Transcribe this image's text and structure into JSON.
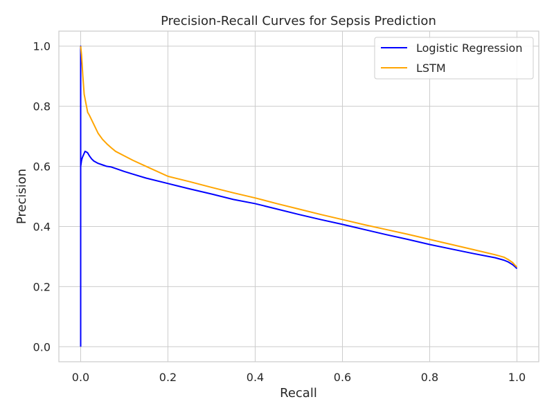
{
  "chart_data": {
    "type": "line",
    "title": "Precision-Recall Curves for Sepsis Prediction",
    "xlabel": "Recall",
    "ylabel": "Precision",
    "xlim": [
      -0.05,
      1.05
    ],
    "ylim": [
      -0.05,
      1.05
    ],
    "xticks": [
      0.0,
      0.2,
      0.4,
      0.6,
      0.8,
      1.0
    ],
    "xtick_labels": [
      "0.0",
      "0.2",
      "0.4",
      "0.6",
      "0.8",
      "1.0"
    ],
    "yticks": [
      0.0,
      0.2,
      0.4,
      0.6,
      0.8,
      1.0
    ],
    "ytick_labels": [
      "0.0",
      "0.2",
      "0.4",
      "0.6",
      "0.8",
      "1.0"
    ],
    "grid": true,
    "legend_position": "top-right",
    "series": [
      {
        "name": "Logistic Regression",
        "color": "#0000ff",
        "x": [
          0.0,
          0.0,
          0.0,
          0.0,
          0.0,
          0.0,
          0.0,
          0.002,
          0.004,
          0.007,
          0.01,
          0.013,
          0.016,
          0.02,
          0.025,
          0.03,
          0.035,
          0.04,
          0.05,
          0.06,
          0.07,
          0.08,
          0.1,
          0.12,
          0.15,
          0.2,
          0.25,
          0.3,
          0.35,
          0.4,
          0.45,
          0.5,
          0.55,
          0.6,
          0.65,
          0.7,
          0.75,
          0.8,
          0.85,
          0.9,
          0.95,
          0.97,
          0.98,
          0.99,
          0.995,
          1.0
        ],
        "y": [
          0.0,
          0.3,
          0.5,
          0.58,
          0.8,
          1.0,
          0.6,
          0.62,
          0.63,
          0.64,
          0.65,
          0.648,
          0.645,
          0.635,
          0.625,
          0.618,
          0.614,
          0.61,
          0.605,
          0.6,
          0.598,
          0.593,
          0.583,
          0.574,
          0.561,
          0.543,
          0.525,
          0.508,
          0.49,
          0.476,
          0.458,
          0.44,
          0.423,
          0.407,
          0.39,
          0.373,
          0.357,
          0.34,
          0.325,
          0.31,
          0.296,
          0.288,
          0.282,
          0.273,
          0.267,
          0.26
        ]
      },
      {
        "name": "LSTM",
        "color": "#ffa500",
        "x": [
          0.0,
          0.002,
          0.005,
          0.008,
          0.012,
          0.016,
          0.02,
          0.025,
          0.03,
          0.04,
          0.05,
          0.06,
          0.07,
          0.08,
          0.1,
          0.12,
          0.15,
          0.2,
          0.25,
          0.3,
          0.35,
          0.4,
          0.45,
          0.5,
          0.55,
          0.6,
          0.65,
          0.7,
          0.75,
          0.8,
          0.85,
          0.9,
          0.95,
          0.97,
          0.98,
          0.99,
          0.995,
          1.0
        ],
        "y": [
          1.0,
          0.97,
          0.9,
          0.84,
          0.81,
          0.78,
          0.77,
          0.755,
          0.74,
          0.71,
          0.69,
          0.675,
          0.662,
          0.65,
          0.635,
          0.62,
          0.6,
          0.567,
          0.549,
          0.53,
          0.512,
          0.495,
          0.476,
          0.458,
          0.44,
          0.423,
          0.406,
          0.39,
          0.374,
          0.357,
          0.34,
          0.323,
          0.306,
          0.298,
          0.29,
          0.28,
          0.272,
          0.265
        ]
      }
    ]
  }
}
